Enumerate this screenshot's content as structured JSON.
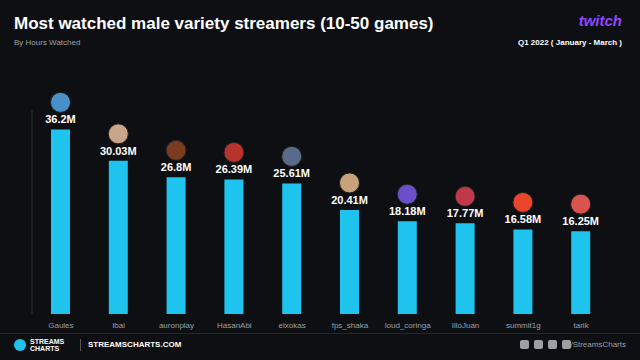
{
  "chart_data": {
    "type": "bar",
    "title": "Most watched male variety streamers (10-50 games)",
    "subtitle": "By Hours Watched",
    "period": "Q1 2022 ( January - March )",
    "platform": "twitch",
    "categories": [
      "Gaules",
      "ibai",
      "auronplay",
      "HasanAbi",
      "elxokas",
      "fps_shaka",
      "loud_coringa",
      "IlloJuan",
      "summit1g",
      "tarik"
    ],
    "values": [
      36.2,
      30.03,
      26.8,
      26.39,
      25.61,
      20.41,
      18.18,
      17.77,
      16.58,
      16.25
    ],
    "value_labels": [
      "36.2M",
      "30.03M",
      "26.8M",
      "26.39M",
      "25.61M",
      "20.41M",
      "18.18M",
      "17.77M",
      "16.58M",
      "16.25M"
    ],
    "color": "#1fc4ee",
    "ylim": [
      0,
      40
    ],
    "yticks": [
      0,
      40
    ],
    "tick_labels": false,
    "data_labels": true,
    "grid": false
  },
  "footer": {
    "brand": [
      "STREAMS",
      "CHARTS"
    ],
    "website": "STREAMSCHARTS.COM",
    "social": "/StreamsCharts"
  }
}
